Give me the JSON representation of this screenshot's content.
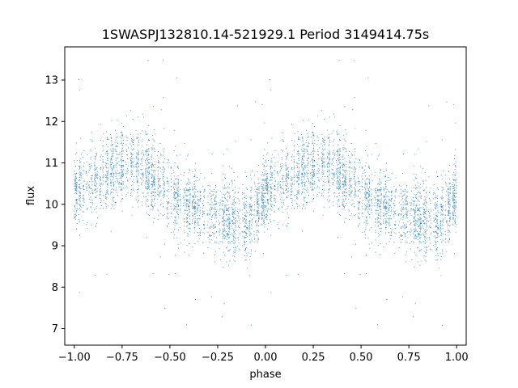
{
  "chart_data": {
    "type": "scatter",
    "title": "1SWASPJ132810.14-521929.1 Period 3149414.75s",
    "xlabel": "phase",
    "ylabel": "flux",
    "xlim": [
      -1.05,
      1.05
    ],
    "ylim": [
      6.6,
      13.8
    ],
    "xticks": [
      -1.0,
      -0.75,
      -0.5,
      -0.25,
      0.0,
      0.25,
      0.5,
      0.75,
      1.0
    ],
    "xtick_labels": [
      "−1.00",
      "−0.75",
      "−0.50",
      "−0.25",
      "0.00",
      "0.25",
      "0.50",
      "0.75",
      "1.00"
    ],
    "yticks": [
      7,
      8,
      9,
      10,
      11,
      12,
      13
    ],
    "ytick_labels": [
      "7",
      "8",
      "9",
      "10",
      "11",
      "12",
      "13"
    ],
    "grid": false,
    "color": "#1f77b4",
    "series": [
      {
        "phase_trend": {
          "x": [
            0.0,
            0.05,
            0.1,
            0.15,
            0.2,
            0.25,
            0.3,
            0.35,
            0.4,
            0.45,
            0.5,
            0.55,
            0.6,
            0.65,
            0.7,
            0.75,
            0.8,
            0.85,
            0.9,
            0.95,
            1.0
          ],
          "y": [
            10.3,
            10.5,
            10.6,
            10.7,
            10.85,
            10.95,
            11.0,
            10.9,
            10.7,
            10.5,
            10.3,
            10.1,
            10.0,
            9.9,
            9.8,
            9.7,
            9.65,
            9.6,
            9.6,
            9.9,
            10.2
          ]
        },
        "scatter_sigma": 0.45
      }
    ]
  }
}
